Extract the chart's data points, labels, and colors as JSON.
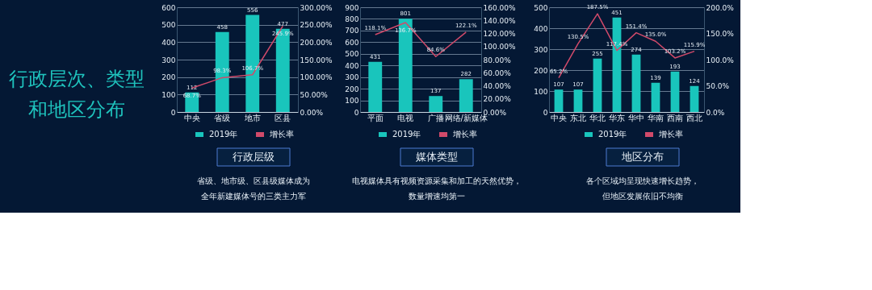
{
  "chart_data": [
    {
      "type": "other",
      "title": "行政层次、类型和地区分布"
    },
    {
      "type": "bar",
      "title": "行政层级",
      "annotations": [
        "省级、地市级、区县级媒体成为",
        "全年新建媒体号的三类主力军"
      ],
      "categories": [
        "中央",
        "省级",
        "地市",
        "区县"
      ],
      "legend": "bottom",
      "grid": "y",
      "ylim": [
        0,
        600
      ],
      "yticks": [
        0,
        100,
        200,
        300,
        400,
        500,
        600
      ],
      "y2lim": [
        0,
        300
      ],
      "y2ticks": [
        {
          "value": 0,
          "label": "0.00%"
        },
        {
          "value": 50,
          "label": "50.00%"
        },
        {
          "value": 100,
          "label": "100.00%"
        },
        {
          "value": 150,
          "label": "150.00%"
        },
        {
          "value": 200,
          "label": "200.00%"
        },
        {
          "value": 250,
          "label": "250.00%"
        },
        {
          "value": 300,
          "label": "300.00%"
        }
      ],
      "series": [
        {
          "name": "2019年",
          "type": "bar",
          "color": "#19c5bc",
          "values": [
            112,
            458,
            556,
            477
          ],
          "value_labels": [
            "112",
            "458",
            "556",
            "477"
          ]
        },
        {
          "name": "增长率",
          "type": "line",
          "axis": "y2",
          "color": "#d14a6a",
          "values": [
            68.7,
            98.3,
            106.7,
            245.9
          ],
          "value_labels": [
            "68.7%",
            "98.3%",
            "106.7%",
            "245.9%"
          ]
        }
      ]
    },
    {
      "type": "bar",
      "title": "媒体类型",
      "annotations": [
        "电视媒体具有视频资源采集和加工的天然优势，",
        "数量增速均第一"
      ],
      "categories": [
        "平面",
        "电视",
        "广播",
        "网络/新媒体"
      ],
      "legend": "bottom",
      "grid": "y",
      "ylim": [
        0,
        900
      ],
      "yticks": [
        0,
        100,
        200,
        300,
        400,
        500,
        600,
        700,
        800,
        900
      ],
      "y2lim": [
        0,
        160
      ],
      "y2ticks": [
        {
          "value": 0,
          "label": "0.00%"
        },
        {
          "value": 20,
          "label": "20.00%"
        },
        {
          "value": 40,
          "label": "40.00%"
        },
        {
          "value": 60,
          "label": "60.00%"
        },
        {
          "value": 80,
          "label": "80.00%"
        },
        {
          "value": 100,
          "label": "100.00%"
        },
        {
          "value": 120,
          "label": "120.00%"
        },
        {
          "value": 140,
          "label": "140.00%"
        },
        {
          "value": 160,
          "label": "160.00%"
        }
      ],
      "series": [
        {
          "name": "2019年",
          "type": "bar",
          "color": "#19c5bc",
          "values": [
            431,
            801,
            137,
            282
          ],
          "value_labels": [
            "431",
            "801",
            "137",
            "282"
          ]
        },
        {
          "name": "增长率",
          "type": "line",
          "axis": "y2",
          "color": "#d14a6a",
          "values": [
            118.1,
            136.7,
            84.6,
            122.1
          ],
          "value_labels": [
            "118.1%",
            "136.7%",
            "84.6%",
            "122.1%"
          ]
        }
      ]
    },
    {
      "type": "bar",
      "title": "地区分布",
      "annotations": [
        "各个区域均呈现快速增长趋势，",
        "但地区发展依旧不均衡"
      ],
      "categories": [
        "中央",
        "东北",
        "华北",
        "华东",
        "华中",
        "华南",
        "西南",
        "西北"
      ],
      "legend": "bottom",
      "grid": "y",
      "ylim": [
        0,
        500
      ],
      "yticks": [
        0,
        100,
        200,
        300,
        400,
        500
      ],
      "y2lim": [
        0,
        200
      ],
      "y2ticks": [
        {
          "value": 0,
          "label": "0.0%"
        },
        {
          "value": 50,
          "label": "50.0%"
        },
        {
          "value": 100,
          "label": "100.0%"
        },
        {
          "value": 150,
          "label": "150.0%"
        },
        {
          "value": 200,
          "label": "200.0%"
        }
      ],
      "series": [
        {
          "name": "2019年",
          "type": "bar",
          "color": "#19c5bc",
          "values": [
            107,
            107,
            255,
            451,
            274,
            139,
            193,
            124
          ],
          "value_labels": [
            "107",
            "107",
            "255",
            "451",
            "274",
            "139",
            "193",
            "124"
          ]
        },
        {
          "name": "增长率",
          "type": "line",
          "axis": "y2",
          "color": "#d14a6a",
          "values": [
            65.2,
            130.5,
            187.5,
            117.4,
            151.4,
            135.0,
            103.2,
            115.9
          ],
          "value_labels": [
            "65.2%",
            "130.5%",
            "187.5%",
            "117.4%",
            "151.4%",
            "135.0%",
            "103.2%",
            "115.9%"
          ]
        }
      ]
    }
  ]
}
